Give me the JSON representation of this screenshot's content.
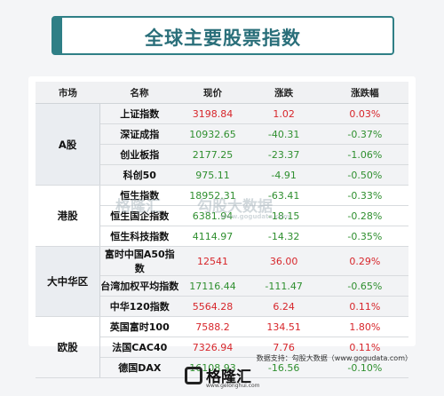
{
  "title": "全球主要股票指数",
  "headers": [
    "市场",
    "名称",
    "现价",
    "涨跌",
    "涨跌幅"
  ],
  "groups": [
    {
      "market": "A股",
      "rows": [
        {
          "name": "上证指数",
          "price": "3198.84",
          "change": "1.02",
          "pct": "0.03%"
        },
        {
          "name": "深证成指",
          "price": "10932.65",
          "change": "-40.31",
          "pct": "-0.37%"
        },
        {
          "name": "创业板指",
          "price": "2177.25",
          "change": "-23.37",
          "pct": "-1.06%"
        },
        {
          "name": "科创50",
          "price": "975.11",
          "change": "-4.91",
          "pct": "-0.50%"
        }
      ]
    },
    {
      "market": "港股",
      "rows": [
        {
          "name": "恒生指数",
          "price": "18952.31",
          "change": "-63.41",
          "pct": "-0.33%"
        },
        {
          "name": "恒生国企指数",
          "price": "6381.94",
          "change": "-18.15",
          "pct": "-0.28%"
        },
        {
          "name": "恒生科技指数",
          "price": "4114.97",
          "change": "-14.32",
          "pct": "-0.35%"
        }
      ]
    },
    {
      "market": "大中华区",
      "rows": [
        {
          "name": "富时中国A50指数",
          "price": "12541",
          "change": "36.00",
          "pct": "0.29%"
        },
        {
          "name": "台湾加权平均指数",
          "price": "17116.44",
          "change": "-111.47",
          "pct": "-0.65%"
        },
        {
          "name": "中华120指数",
          "price": "5564.28",
          "change": "6.24",
          "pct": "0.11%"
        }
      ]
    },
    {
      "market": "欧股",
      "rows": [
        {
          "name": "英国富时100",
          "price": "7588.2",
          "change": "134.51",
          "pct": "1.80%"
        },
        {
          "name": "法国CAC40",
          "price": "7326.94",
          "change": "7.76",
          "pct": "0.11%"
        },
        {
          "name": "德国DAX",
          "price": "16108.93",
          "change": "-16.56",
          "pct": "-0.10%"
        }
      ]
    }
  ],
  "watermark": {
    "brand": "格隆汇",
    "brand2": "勾股大数据",
    "url": "www.gogudata.com"
  },
  "source": "数据支持：勾股大数据（www.gogudata.com）",
  "logo": {
    "name": "格隆汇",
    "url": "www.gelonghui.com"
  },
  "colors": {
    "accent": "#2f7f86",
    "up": "#d7262b",
    "down": "#2f8f2f"
  }
}
